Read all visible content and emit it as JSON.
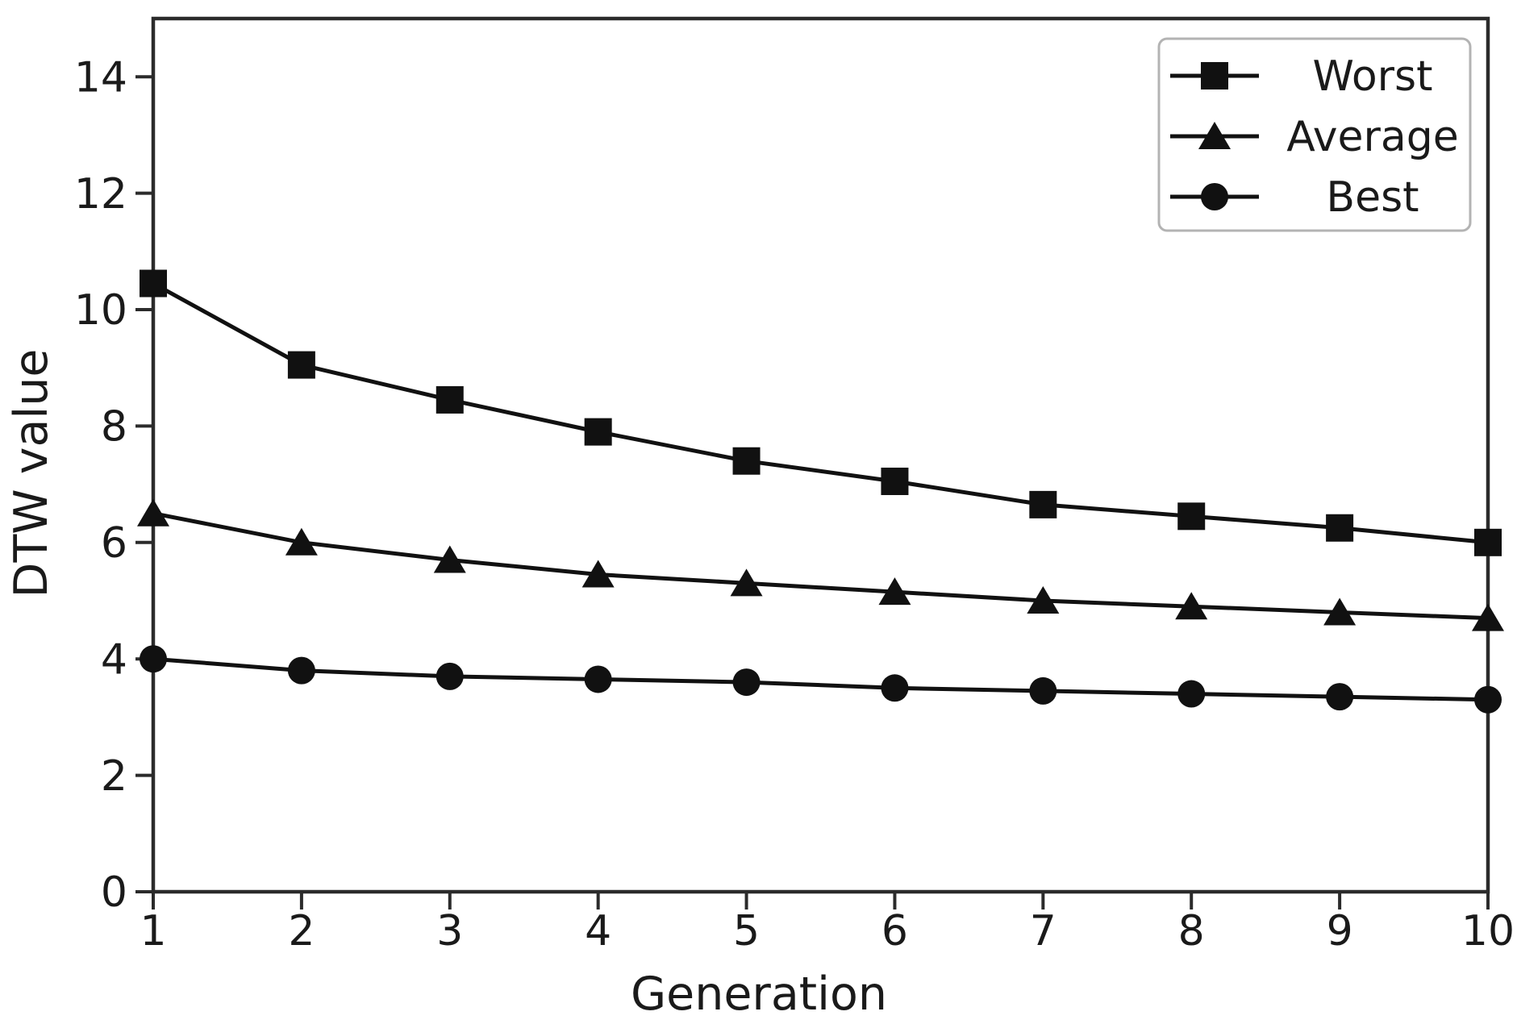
{
  "figure": {
    "background": "#ffffff",
    "line_color": "#111111",
    "axis_color": "#2b2b2b",
    "text_color": "#1a1a1a",
    "legend_border_color": "#b3b3b3"
  },
  "chart_data": {
    "type": "line",
    "title": "",
    "xlabel": "Generation",
    "ylabel": "DTW value",
    "x": [
      1,
      2,
      3,
      4,
      5,
      6,
      7,
      8,
      9,
      10
    ],
    "xticks": [
      "1",
      "2",
      "3",
      "4",
      "5",
      "6",
      "7",
      "8",
      "9",
      "10"
    ],
    "yticks": [
      0,
      2,
      4,
      6,
      8,
      10,
      12,
      14
    ],
    "xlim": [
      1,
      10
    ],
    "ylim": [
      0,
      15
    ],
    "grid": false,
    "legend_position": "upper right",
    "series": [
      {
        "name": "Worst",
        "marker": "square",
        "values": [
          10.45,
          9.05,
          8.45,
          7.9,
          7.4,
          7.05,
          6.65,
          6.45,
          6.25,
          6.0
        ]
      },
      {
        "name": "Average",
        "marker": "triangle",
        "values": [
          6.5,
          6.0,
          5.7,
          5.45,
          5.3,
          5.15,
          5.0,
          4.9,
          4.8,
          4.7
        ]
      },
      {
        "name": "Best",
        "marker": "circle",
        "values": [
          4.0,
          3.8,
          3.7,
          3.65,
          3.6,
          3.5,
          3.45,
          3.4,
          3.35,
          3.3
        ]
      }
    ]
  }
}
